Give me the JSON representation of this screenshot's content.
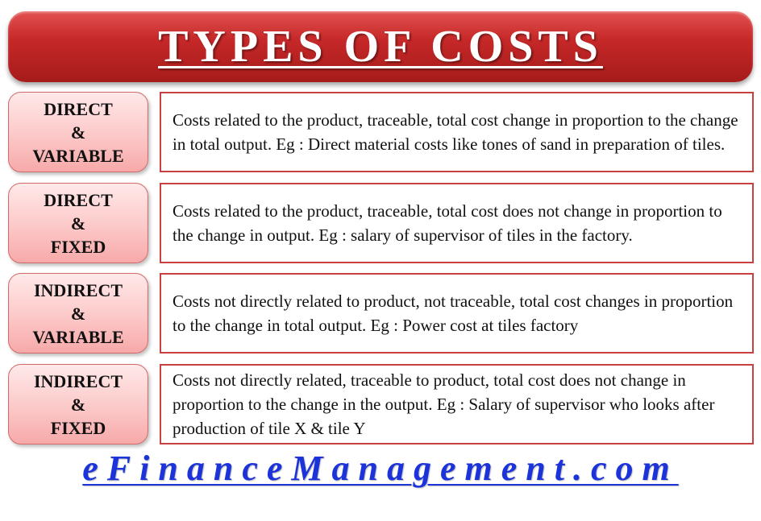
{
  "title": "TYPES OF COSTS",
  "rows": [
    {
      "label": [
        "DIRECT",
        "&",
        "VARIABLE"
      ],
      "description": "Costs related to the product, traceable, total cost change in proportion to the change in total output. Eg : Direct material costs like tones of sand in preparation of tiles."
    },
    {
      "label": [
        "DIRECT",
        "&",
        "FIXED"
      ],
      "description": "Costs related to the product, traceable, total cost does not change in proportion to the change in output. Eg : salary of supervisor of tiles in the factory."
    },
    {
      "label": [
        "INDIRECT",
        "&",
        "VARIABLE"
      ],
      "description": "Costs not directly related to product, not traceable, total cost changes in proportion to the change in total output. Eg : Power cost at tiles factory"
    },
    {
      "label": [
        "INDIRECT",
        "&",
        "FIXED"
      ],
      "description": "Costs not directly related, traceable to product, total cost does not change in proportion to the change in the output. Eg : Salary of supervisor who looks after production of tile X & tile Y"
    }
  ],
  "footer": "eFinanceManagement.com",
  "colors": {
    "banner": "#c62828",
    "label_fill": "#fcc8c8",
    "desc_border": "#c94040",
    "footer_text": "#1c33d9"
  }
}
